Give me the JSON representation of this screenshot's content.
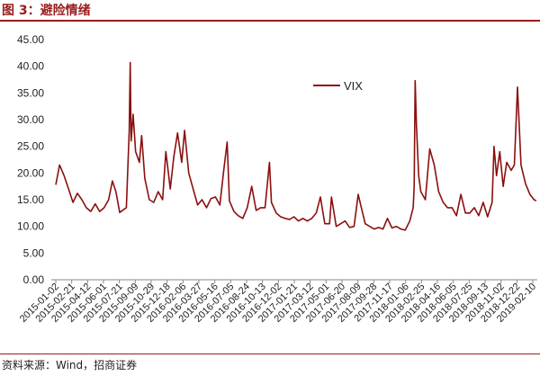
{
  "figure": {
    "title": "图 3：避险情绪",
    "source": "资料来源：Wind，招商证券"
  },
  "colors": {
    "accent": "#9b1c1c",
    "series": "#8b0f0f",
    "axis": "#888888"
  },
  "chart_data": {
    "type": "line",
    "title": "",
    "xlabel": "",
    "ylabel": "",
    "ylim": [
      0,
      45
    ],
    "y_ticks": [
      "0.00",
      "5.00",
      "10.00",
      "15.00",
      "20.00",
      "25.00",
      "30.00",
      "35.00",
      "40.00",
      "45.00"
    ],
    "x_ticks": [
      "2015-01-02",
      "2015-02-21",
      "2015-04-12",
      "2015-06-01",
      "2015-07-21",
      "2015-09-09",
      "2015-10-29",
      "2015-12-18",
      "2016-02-06",
      "2016-03-27",
      "2016-05-16",
      "2016-07-05",
      "2016-08-24",
      "2016-10-13",
      "2016-12-02",
      "2017-01-21",
      "2017-03-12",
      "2017-05-01",
      "2017-06-20",
      "2017-08-09",
      "2017-09-28",
      "2017-11-17",
      "2018-01-06",
      "2018-02-25",
      "2018-04-16",
      "2018-06-05",
      "2018-07-25",
      "2018-09-13",
      "2018-11-02",
      "2018-12-22",
      "2019-02-10"
    ],
    "grid": false,
    "legend": "upper-left",
    "series": [
      {
        "name": "VIX",
        "points": [
          [
            "2015-01-02",
            17.8
          ],
          [
            "2015-01-14",
            21.5
          ],
          [
            "2015-01-28",
            19.5
          ],
          [
            "2015-02-10",
            17.2
          ],
          [
            "2015-02-25",
            14.5
          ],
          [
            "2015-03-11",
            16.2
          ],
          [
            "2015-03-25",
            15.0
          ],
          [
            "2015-04-08",
            13.5
          ],
          [
            "2015-04-22",
            12.8
          ],
          [
            "2015-05-06",
            14.2
          ],
          [
            "2015-05-20",
            12.8
          ],
          [
            "2015-06-03",
            13.5
          ],
          [
            "2015-06-17",
            15.0
          ],
          [
            "2015-06-29",
            18.5
          ],
          [
            "2015-07-10",
            16.5
          ],
          [
            "2015-07-22",
            12.6
          ],
          [
            "2015-08-12",
            13.5
          ],
          [
            "2015-08-21",
            28.0
          ],
          [
            "2015-08-24",
            40.7
          ],
          [
            "2015-08-27",
            26.0
          ],
          [
            "2015-09-02",
            31.0
          ],
          [
            "2015-09-10",
            24.0
          ],
          [
            "2015-09-22",
            22.0
          ],
          [
            "2015-09-29",
            27.0
          ],
          [
            "2015-10-09",
            19.0
          ],
          [
            "2015-10-23",
            15.0
          ],
          [
            "2015-11-06",
            14.5
          ],
          [
            "2015-11-20",
            16.5
          ],
          [
            "2015-12-04",
            15.0
          ],
          [
            "2015-12-14",
            24.0
          ],
          [
            "2015-12-28",
            17.0
          ],
          [
            "2016-01-08",
            23.0
          ],
          [
            "2016-01-20",
            27.5
          ],
          [
            "2016-02-02",
            22.0
          ],
          [
            "2016-02-11",
            28.0
          ],
          [
            "2016-02-24",
            20.0
          ],
          [
            "2016-03-09",
            17.0
          ],
          [
            "2016-03-23",
            14.0
          ],
          [
            "2016-04-06",
            15.0
          ],
          [
            "2016-04-20",
            13.5
          ],
          [
            "2016-05-04",
            15.2
          ],
          [
            "2016-05-18",
            15.5
          ],
          [
            "2016-06-01",
            14.0
          ],
          [
            "2016-06-13",
            20.5
          ],
          [
            "2016-06-24",
            25.8
          ],
          [
            "2016-07-01",
            14.8
          ],
          [
            "2016-07-15",
            12.8
          ],
          [
            "2016-07-29",
            12.0
          ],
          [
            "2016-08-12",
            11.5
          ],
          [
            "2016-08-26",
            13.5
          ],
          [
            "2016-09-09",
            17.5
          ],
          [
            "2016-09-23",
            13.0
          ],
          [
            "2016-10-07",
            13.5
          ],
          [
            "2016-10-21",
            13.5
          ],
          [
            "2016-11-04",
            22.0
          ],
          [
            "2016-11-10",
            14.5
          ],
          [
            "2016-11-25",
            12.5
          ],
          [
            "2016-12-09",
            11.8
          ],
          [
            "2016-12-23",
            11.5
          ],
          [
            "2017-01-06",
            11.3
          ],
          [
            "2017-01-20",
            11.8
          ],
          [
            "2017-02-03",
            11.0
          ],
          [
            "2017-02-17",
            11.5
          ],
          [
            "2017-03-03",
            11.0
          ],
          [
            "2017-03-17",
            11.5
          ],
          [
            "2017-03-31",
            12.5
          ],
          [
            "2017-04-13",
            15.5
          ],
          [
            "2017-04-27",
            10.5
          ],
          [
            "2017-05-12",
            10.5
          ],
          [
            "2017-05-18",
            15.5
          ],
          [
            "2017-06-02",
            10.0
          ],
          [
            "2017-06-16",
            10.5
          ],
          [
            "2017-06-30",
            11.0
          ],
          [
            "2017-07-14",
            9.8
          ],
          [
            "2017-07-28",
            10.0
          ],
          [
            "2017-08-10",
            16.0
          ],
          [
            "2017-08-18",
            14.0
          ],
          [
            "2017-09-01",
            10.5
          ],
          [
            "2017-09-15",
            10.0
          ],
          [
            "2017-09-29",
            9.5
          ],
          [
            "2017-10-13",
            9.8
          ],
          [
            "2017-10-27",
            9.5
          ],
          [
            "2017-11-10",
            11.5
          ],
          [
            "2017-11-24",
            9.7
          ],
          [
            "2017-12-08",
            10.0
          ],
          [
            "2017-12-22",
            9.5
          ],
          [
            "2018-01-05",
            9.3
          ],
          [
            "2018-01-19",
            11.0
          ],
          [
            "2018-01-30",
            13.5
          ],
          [
            "2018-02-02",
            17.5
          ],
          [
            "2018-02-05",
            37.3
          ],
          [
            "2018-02-09",
            29.0
          ],
          [
            "2018-02-16",
            19.5
          ],
          [
            "2018-02-23",
            16.5
          ],
          [
            "2018-03-09",
            15.0
          ],
          [
            "2018-03-23",
            24.5
          ],
          [
            "2018-04-06",
            21.5
          ],
          [
            "2018-04-20",
            16.5
          ],
          [
            "2018-05-04",
            14.5
          ],
          [
            "2018-05-18",
            13.5
          ],
          [
            "2018-06-01",
            13.5
          ],
          [
            "2018-06-15",
            12.0
          ],
          [
            "2018-06-29",
            16.0
          ],
          [
            "2018-07-13",
            12.5
          ],
          [
            "2018-07-27",
            12.5
          ],
          [
            "2018-08-10",
            13.5
          ],
          [
            "2018-08-24",
            12.0
          ],
          [
            "2018-09-07",
            14.5
          ],
          [
            "2018-09-21",
            11.8
          ],
          [
            "2018-10-05",
            14.5
          ],
          [
            "2018-10-11",
            25.0
          ],
          [
            "2018-10-19",
            19.5
          ],
          [
            "2018-10-29",
            24.0
          ],
          [
            "2018-11-09",
            17.5
          ],
          [
            "2018-11-20",
            22.0
          ],
          [
            "2018-12-04",
            20.5
          ],
          [
            "2018-12-14",
            21.5
          ],
          [
            "2018-12-24",
            36.1
          ],
          [
            "2019-01-04",
            21.5
          ],
          [
            "2019-01-18",
            18.0
          ],
          [
            "2019-02-01",
            16.0
          ],
          [
            "2019-02-14",
            15.0
          ],
          [
            "2019-02-21",
            14.8
          ]
        ]
      }
    ]
  }
}
